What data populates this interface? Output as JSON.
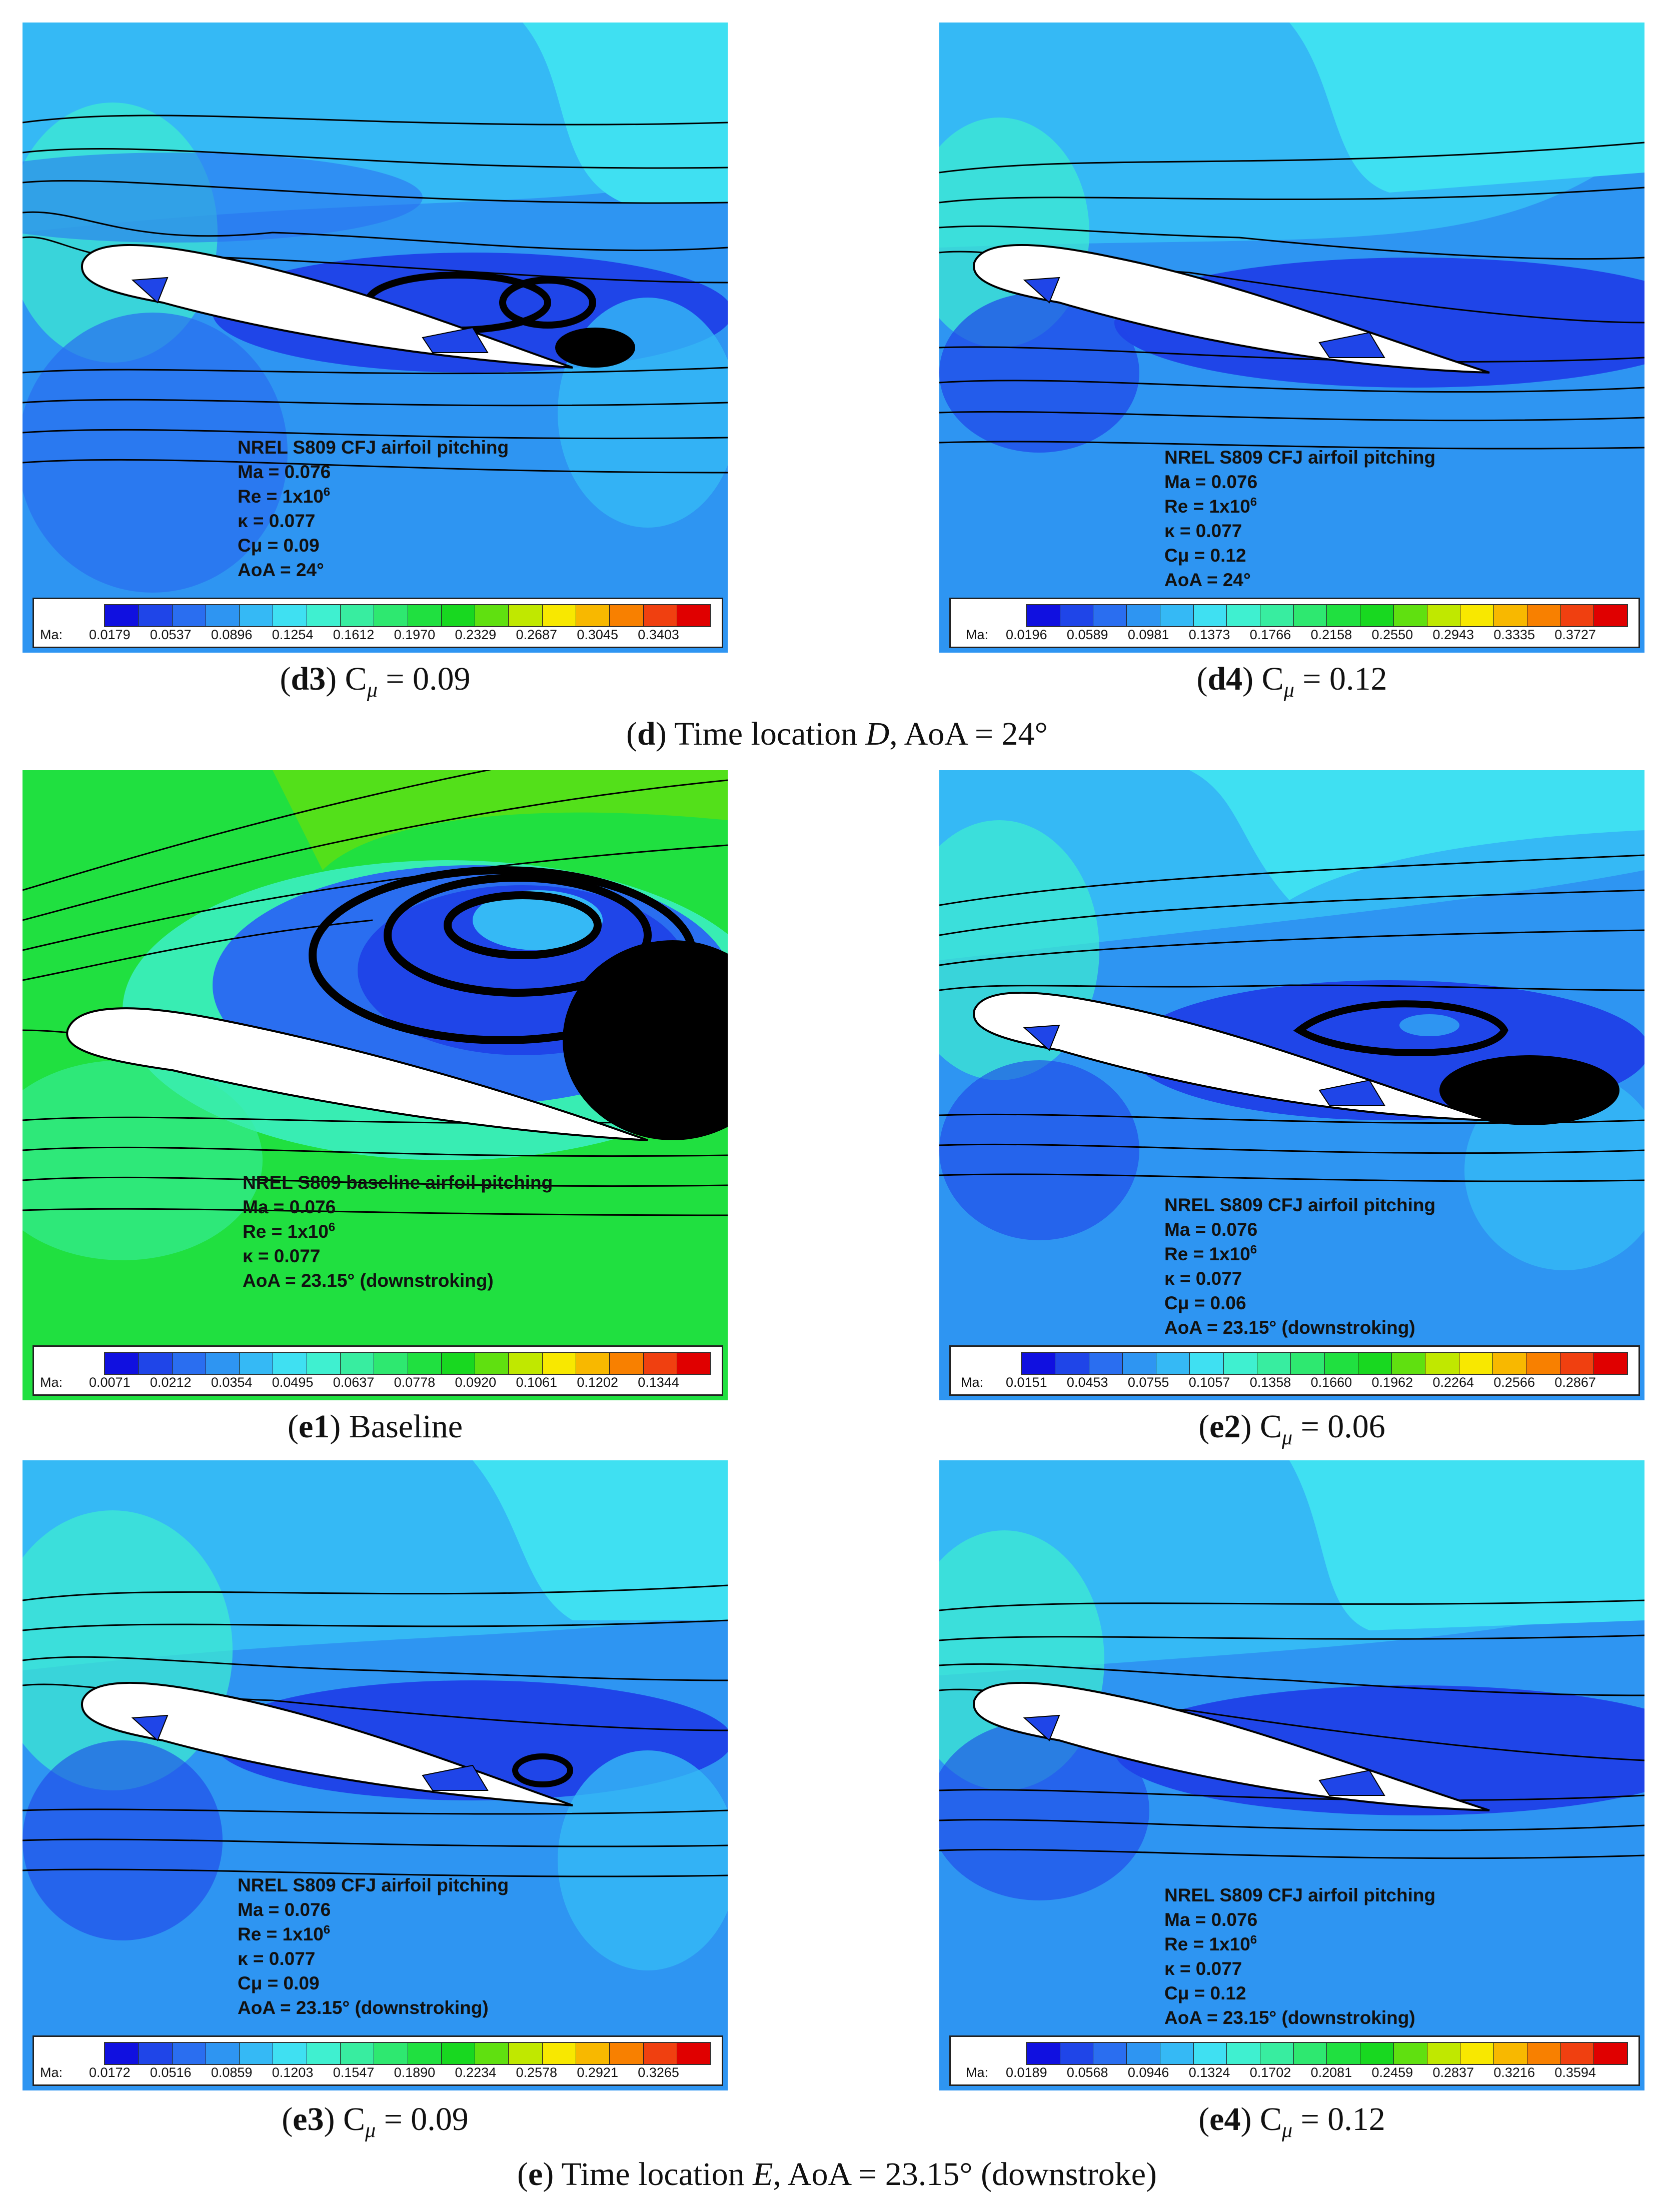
{
  "panels": [
    {
      "id": "d3",
      "caption": {
        "label": "d3",
        "text": " C",
        "sub": "μ",
        "rest": " = 0.09"
      },
      "info": [
        "NREL S809 CFJ airfoil pitching",
        "Ma = 0.076",
        "Re = 1x10",
        "κ = 0.077",
        "Cμ = 0.09",
        "AoA = 24°"
      ],
      "exponents": {
        "re": "6",
        "aoa": ""
      },
      "legend": {
        "label": "Ma:",
        "ticks": [
          "0.0179",
          "0.0537",
          "0.0896",
          "0.1254",
          "0.1612",
          "0.1970",
          "0.2329",
          "0.2687",
          "0.3045",
          "0.3403"
        ]
      }
    },
    {
      "id": "d4",
      "caption": {
        "label": "d4",
        "text": " C",
        "sub": "μ",
        "rest": " = 0.12"
      },
      "info": [
        "NREL S809 CFJ airfoil pitching",
        "Ma = 0.076",
        "Re = 1x10",
        "κ = 0.077",
        "Cμ = 0.12",
        "AoA = 24°"
      ],
      "exponents": {
        "re": "6",
        "aoa": ""
      },
      "legend": {
        "label": "Ma:",
        "ticks": [
          "0.0196",
          "0.0589",
          "0.0981",
          "0.1373",
          "0.1766",
          "0.2158",
          "0.2550",
          "0.2943",
          "0.3335",
          "0.3727"
        ]
      }
    },
    {
      "id": "e1",
      "caption": {
        "label": "e1",
        "text": " Baseline",
        "sub": "",
        "rest": ""
      },
      "info": [
        "NREL S809 baseline airfoil pitching",
        "Ma = 0.076",
        "Re = 1x10",
        "κ = 0.077",
        "AoA = 23.15° (downstroking)"
      ],
      "exponents": {
        "re": "6",
        "aoa": ""
      },
      "legend": {
        "label": "Ma:",
        "ticks": [
          "0.0071",
          "0.0212",
          "0.0354",
          "0.0495",
          "0.0637",
          "0.0778",
          "0.0920",
          "0.1061",
          "0.1202",
          "0.1344"
        ]
      }
    },
    {
      "id": "e2",
      "caption": {
        "label": "e2",
        "text": " C",
        "sub": "μ",
        "rest": " = 0.06"
      },
      "info": [
        "NREL S809 CFJ airfoil pitching",
        "Ma = 0.076",
        "Re = 1x10",
        "κ = 0.077",
        "Cμ = 0.06",
        "AoA = 23.15° (downstroking)"
      ],
      "exponents": {
        "re": "6",
        "aoa": ""
      },
      "legend": {
        "label": "Ma:",
        "ticks": [
          "0.0151",
          "0.0453",
          "0.0755",
          "0.1057",
          "0.1358",
          "0.1660",
          "0.1962",
          "0.2264",
          "0.2566",
          "0.2867"
        ]
      }
    },
    {
      "id": "e3",
      "caption": {
        "label": "e3",
        "text": " C",
        "sub": "μ",
        "rest": " = 0.09"
      },
      "info": [
        "NREL S809 CFJ airfoil pitching",
        "Ma = 0.076",
        "Re = 1x10",
        "κ = 0.077",
        "Cμ = 0.09",
        "AoA = 23.15° (downstroking)"
      ],
      "exponents": {
        "re": "6",
        "aoa": ""
      },
      "legend": {
        "label": "Ma:",
        "ticks": [
          "0.0172",
          "0.0516",
          "0.0859",
          "0.1203",
          "0.1547",
          "0.1890",
          "0.2234",
          "0.2578",
          "0.2921",
          "0.3265"
        ]
      }
    },
    {
      "id": "e4",
      "caption": {
        "label": "e4",
        "text": " C",
        "sub": "μ",
        "rest": " = 0.12"
      },
      "info": [
        "NREL S809 CFJ airfoil pitching",
        "Ma = 0.076",
        "Re = 1x10",
        "κ = 0.077",
        "Cμ = 0.12",
        "AoA = 23.15° (downstroking)"
      ],
      "exponents": {
        "re": "6",
        "aoa": ""
      },
      "legend": {
        "label": "Ma:",
        "ticks": [
          "0.0189",
          "0.0568",
          "0.0946",
          "0.1324",
          "0.1702",
          "0.2081",
          "0.2459",
          "0.2837",
          "0.3216",
          "0.3594"
        ]
      }
    }
  ],
  "group_captions": {
    "d": {
      "label": "d",
      "text": " Time location ",
      "var": "D",
      "rest": ", AoA = 24°"
    },
    "e": {
      "label": "e",
      "text": " Time location ",
      "var": "E",
      "rest": ", AoA = 23.15° (downstroke)"
    }
  },
  "colors": {
    "colormap": [
      "#1010e0",
      "#1f45e8",
      "#2a6ef0",
      "#2e95f2",
      "#35b9f5",
      "#3fe0f2",
      "#3ff0d0",
      "#38eda0",
      "#2ee870",
      "#20e040",
      "#18d820",
      "#60e010",
      "#c0e800",
      "#f8e800",
      "#f8b800",
      "#f88000",
      "#f04010",
      "#e00000"
    ],
    "streamline": "#000000",
    "airfoil": "#ffffff"
  }
}
